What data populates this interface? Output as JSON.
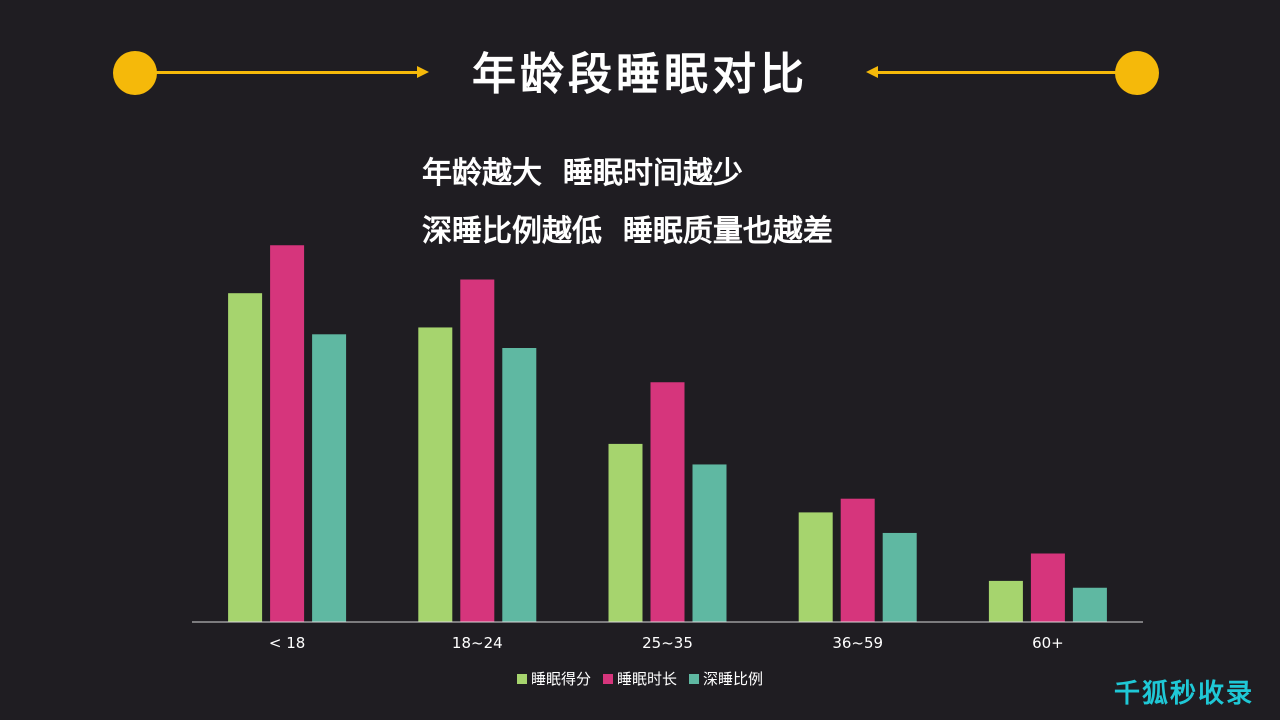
{
  "header": {
    "title": "年龄段睡眠对比",
    "accent_color": "#f5b90a"
  },
  "subtitle": {
    "line1": "年龄越大  睡眠时间越少",
    "line2": "深睡比例越低  睡眠质量也越差"
  },
  "chart_data": {
    "type": "bar",
    "categories": [
      "< 18",
      "18~24",
      "25~35",
      "36~59",
      "60+"
    ],
    "series": [
      {
        "name": "睡眠得分",
        "color": "#a6d46e",
        "values": [
          48,
          43,
          26,
          16,
          6
        ]
      },
      {
        "name": "睡眠时长",
        "color": "#d6357c",
        "values": [
          55,
          50,
          35,
          18,
          10
        ]
      },
      {
        "name": "深睡比例",
        "color": "#5fb8a2",
        "values": [
          42,
          40,
          23,
          13,
          5
        ]
      }
    ],
    "ylim": [
      0,
      60
    ],
    "axis_visible": false,
    "grid": false,
    "legend_position": "bottom-center"
  },
  "watermark": "千狐秒收录"
}
